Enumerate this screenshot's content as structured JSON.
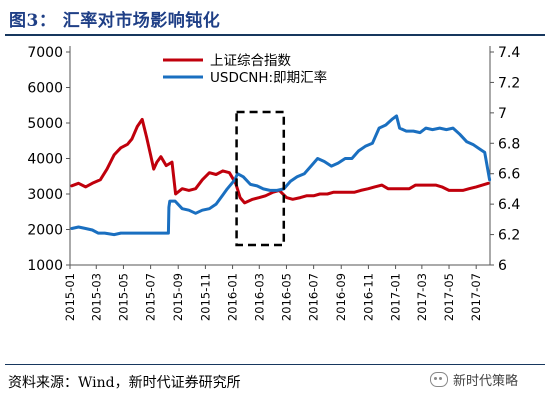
{
  "header": {
    "title": "图3：  汇率对市场影响钝化"
  },
  "footer": {
    "source": "资料来源：Wind，新时代证券研究所",
    "watermark": "新时代策略"
  },
  "icons": {
    "watermark_icon": "wechat-icon"
  },
  "chart_data": {
    "type": "line",
    "title": "",
    "xlabel": "",
    "ylabel_left": "",
    "ylabel_right": "",
    "x_ticks": [
      "2015-01",
      "2015-03",
      "2015-05",
      "2015-07",
      "2015-09",
      "2015-11",
      "2016-01",
      "2016-03",
      "2016-05",
      "2016-07",
      "2016-09",
      "2016-11",
      "2017-01",
      "2017-03",
      "2017-05",
      "2017-07"
    ],
    "y_left": {
      "min": 1000,
      "max": 7000,
      "ticks": [
        "1000",
        "2000",
        "3000",
        "4000",
        "5000",
        "6000",
        "7000"
      ]
    },
    "y_right": {
      "min": 6.0,
      "max": 7.4,
      "ticks": [
        "6",
        "6.2",
        "6.4",
        "6.6",
        "6.8",
        "7",
        "7.2",
        "7.4"
      ]
    },
    "legend_position": "top-center",
    "grid": false,
    "annotation": {
      "type": "dashed-box",
      "x_start": "2016-01-10",
      "x_end": "2016-04-25"
    },
    "series": [
      {
        "name": "上证综合指数",
        "axis": "left",
        "color": "#c0000c",
        "x": [
          "2015-01-05",
          "2015-01-20",
          "2015-02-05",
          "2015-02-20",
          "2015-03-10",
          "2015-03-25",
          "2015-04-10",
          "2015-04-25",
          "2015-05-10",
          "2015-05-20",
          "2015-06-01",
          "2015-06-12",
          "2015-06-22",
          "2015-07-01",
          "2015-07-08",
          "2015-07-15",
          "2015-07-24",
          "2015-08-05",
          "2015-08-18",
          "2015-08-26",
          "2015-09-10",
          "2015-09-25",
          "2015-10-10",
          "2015-10-25",
          "2015-11-10",
          "2015-11-25",
          "2015-12-10",
          "2015-12-25",
          "2016-01-08",
          "2016-01-18",
          "2016-01-28",
          "2016-02-15",
          "2016-03-01",
          "2016-03-15",
          "2016-04-01",
          "2016-04-15",
          "2016-05-01",
          "2016-05-15",
          "2016-06-01",
          "2016-06-15",
          "2016-07-01",
          "2016-07-15",
          "2016-08-01",
          "2016-08-15",
          "2016-09-01",
          "2016-09-15",
          "2016-10-01",
          "2016-10-15",
          "2016-11-01",
          "2016-11-15",
          "2016-12-01",
          "2016-12-15",
          "2017-01-01",
          "2017-01-15",
          "2017-02-01",
          "2017-02-15",
          "2017-03-01",
          "2017-03-15",
          "2017-04-01",
          "2017-04-15",
          "2017-05-01",
          "2017-05-15",
          "2017-06-01",
          "2017-06-15",
          "2017-07-01",
          "2017-07-15",
          "2017-07-28"
        ],
        "values": [
          3230,
          3300,
          3200,
          3300,
          3400,
          3700,
          4100,
          4300,
          4400,
          4550,
          4900,
          5100,
          4600,
          4100,
          3700,
          3900,
          4050,
          3800,
          3900,
          3000,
          3150,
          3100,
          3150,
          3400,
          3600,
          3550,
          3650,
          3600,
          3300,
          2900,
          2750,
          2850,
          2900,
          2950,
          3050,
          3100,
          2900,
          2850,
          2900,
          2950,
          2950,
          3000,
          3000,
          3050,
          3050,
          3050,
          3050,
          3100,
          3150,
          3200,
          3250,
          3150,
          3150,
          3150,
          3150,
          3250,
          3250,
          3250,
          3250,
          3200,
          3100,
          3100,
          3100,
          3150,
          3200,
          3250,
          3300
        ]
      },
      {
        "name": "USDCNH:即期汇率",
        "axis": "right",
        "color": "#1a6fc0",
        "x": [
          "2015-01-05",
          "2015-01-20",
          "2015-02-05",
          "2015-02-20",
          "2015-03-05",
          "2015-03-20",
          "2015-04-10",
          "2015-04-25",
          "2015-05-10",
          "2015-05-25",
          "2015-06-10",
          "2015-06-25",
          "2015-07-10",
          "2015-07-25",
          "2015-08-05",
          "2015-08-10",
          "2015-08-11",
          "2015-08-13",
          "2015-08-25",
          "2015-09-10",
          "2015-09-25",
          "2015-10-10",
          "2015-10-25",
          "2015-11-10",
          "2015-11-25",
          "2015-12-10",
          "2015-12-20",
          "2016-01-06",
          "2016-01-12",
          "2016-01-25",
          "2016-02-10",
          "2016-02-25",
          "2016-03-10",
          "2016-03-25",
          "2016-04-10",
          "2016-04-25",
          "2016-05-10",
          "2016-05-25",
          "2016-06-10",
          "2016-06-25",
          "2016-07-10",
          "2016-07-25",
          "2016-08-10",
          "2016-08-25",
          "2016-09-10",
          "2016-09-25",
          "2016-10-10",
          "2016-10-25",
          "2016-11-10",
          "2016-11-25",
          "2016-12-10",
          "2016-12-25",
          "2017-01-03",
          "2017-01-10",
          "2017-01-25",
          "2017-02-10",
          "2017-02-25",
          "2017-03-10",
          "2017-03-25",
          "2017-04-10",
          "2017-04-25",
          "2017-05-10",
          "2017-05-25",
          "2017-06-10",
          "2017-06-25",
          "2017-07-10",
          "2017-07-20",
          "2017-07-31"
        ],
        "values": [
          6.24,
          6.25,
          6.24,
          6.23,
          6.21,
          6.21,
          6.2,
          6.21,
          6.21,
          6.21,
          6.21,
          6.21,
          6.21,
          6.21,
          6.21,
          6.21,
          6.38,
          6.42,
          6.42,
          6.37,
          6.36,
          6.34,
          6.36,
          6.37,
          6.4,
          6.46,
          6.5,
          6.56,
          6.6,
          6.58,
          6.53,
          6.52,
          6.5,
          6.49,
          6.49,
          6.5,
          6.55,
          6.58,
          6.6,
          6.65,
          6.7,
          6.68,
          6.65,
          6.67,
          6.7,
          6.7,
          6.75,
          6.78,
          6.8,
          6.9,
          6.92,
          6.96,
          6.98,
          6.9,
          6.88,
          6.88,
          6.87,
          6.9,
          6.89,
          6.9,
          6.89,
          6.9,
          6.86,
          6.81,
          6.79,
          6.76,
          6.74,
          6.56
        ]
      }
    ]
  }
}
